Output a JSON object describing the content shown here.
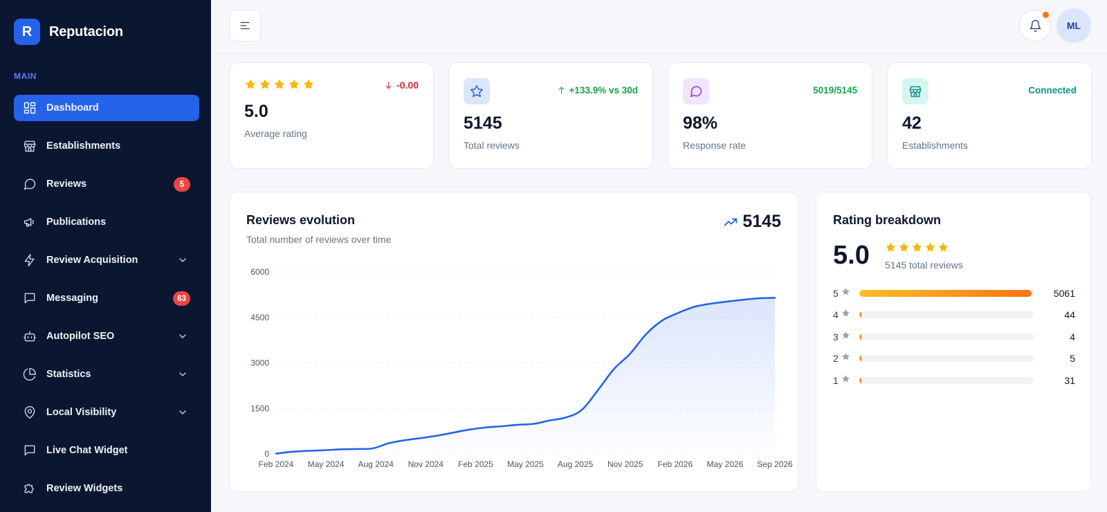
{
  "brand": {
    "logo_letter": "R",
    "name": "Reputacion"
  },
  "sidebar": {
    "section_label": "MAIN",
    "items": [
      {
        "label": "Dashboard",
        "icon": "grid-icon",
        "active": true
      },
      {
        "label": "Establishments",
        "icon": "store-icon"
      },
      {
        "label": "Reviews",
        "icon": "message-circle-icon",
        "badge": "5"
      },
      {
        "label": "Publications",
        "icon": "megaphone-icon"
      },
      {
        "label": "Review Acquisition",
        "icon": "zap-icon",
        "chevron": true
      },
      {
        "label": "Messaging",
        "icon": "message-square-icon",
        "badge": "63"
      },
      {
        "label": "Autopilot SEO",
        "icon": "bot-icon",
        "chevron": true
      },
      {
        "label": "Statistics",
        "icon": "pie-chart-icon",
        "chevron": true
      },
      {
        "label": "Local Visibility",
        "icon": "map-pin-icon",
        "chevron": true
      },
      {
        "label": "Live Chat Widget",
        "icon": "message-square-icon"
      },
      {
        "label": "Review Widgets",
        "icon": "puzzle-icon"
      }
    ]
  },
  "header": {
    "avatar_initials": "ML"
  },
  "stats": {
    "rating": {
      "value": "5.0",
      "label": "Average rating",
      "delta": "-0.00",
      "stars": 5
    },
    "reviews": {
      "value": "5145",
      "label": "Total reviews",
      "delta": "+133.9% vs 30d"
    },
    "response": {
      "value": "98%",
      "label": "Response rate",
      "meta": "5019/5145"
    },
    "establishments": {
      "value": "42",
      "label": "Establishments",
      "meta": "Connected"
    }
  },
  "colors": {
    "accent": "#2563eb",
    "sidebar_bg": "#0b1630",
    "positive": "#16a34a",
    "negative": "#dc2626",
    "star": "#f5b70a"
  },
  "chart_data": {
    "type": "area",
    "title": "Reviews evolution",
    "subtitle": "Total number of reviews over time",
    "total": "5145",
    "x_tick_labels": [
      "Feb 2024",
      "May 2024",
      "Aug 2024",
      "Nov 2024",
      "Feb 2025",
      "May 2025",
      "Aug 2025",
      "Nov 2025",
      "Feb 2026",
      "May 2026",
      "Sep 2026"
    ],
    "y_ticks": [
      0,
      1500,
      3000,
      4500,
      6000
    ],
    "ylim": [
      0,
      6000
    ],
    "series": [
      {
        "x": [
          "2024-02",
          "2024-03",
          "2024-04",
          "2024-05",
          "2024-06",
          "2024-07",
          "2024-08",
          "2024-09",
          "2024-10",
          "2024-11",
          "2024-12",
          "2025-01",
          "2025-02",
          "2025-03",
          "2025-04",
          "2025-05",
          "2025-06",
          "2025-07",
          "2025-08",
          "2025-09",
          "2025-10",
          "2025-11",
          "2025-12",
          "2026-01",
          "2026-02",
          "2026-03",
          "2026-04",
          "2026-05",
          "2026-06",
          "2026-07",
          "2026-08",
          "2026-09"
        ],
        "values": [
          10,
          70,
          100,
          120,
          150,
          160,
          180,
          350,
          450,
          520,
          600,
          700,
          800,
          870,
          910,
          960,
          990,
          1100,
          1200,
          1450,
          2100,
          2800,
          3300,
          3950,
          4400,
          4650,
          4850,
          4950,
          5020,
          5080,
          5130,
          5145
        ]
      }
    ],
    "grid": true
  },
  "rating_breakdown": {
    "title": "Rating breakdown",
    "average": "5.0",
    "total_text": "5145 total reviews",
    "rows": [
      {
        "stars": "5",
        "count": "5061",
        "fraction": 0.9837
      },
      {
        "stars": "4",
        "count": "44",
        "fraction": 0.0086
      },
      {
        "stars": "3",
        "count": "4",
        "fraction": 0.0008
      },
      {
        "stars": "2",
        "count": "5",
        "fraction": 0.001
      },
      {
        "stars": "1",
        "count": "31",
        "fraction": 0.006
      }
    ]
  }
}
